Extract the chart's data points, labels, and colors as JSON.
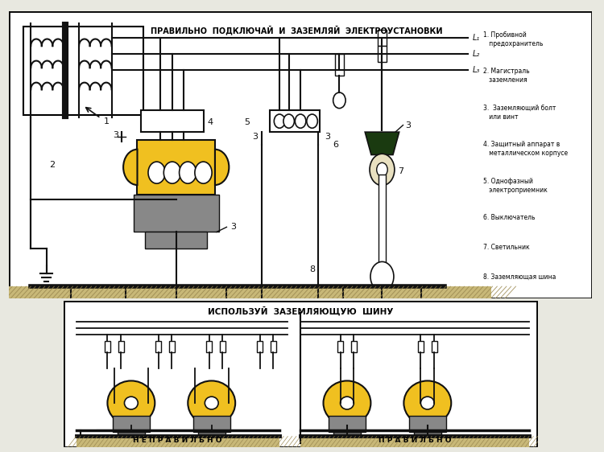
{
  "title_top": "ПРАВИЛЬНО  ПОДКЛЮЧАЙ  И  ЗАЗЕМЛЯЙ  ЭЛЕКТРОУСТАНОВКИ",
  "title_bottom": "ИСПОЛЬЗУЙ  ЗАЗЕМЛЯЮЩУЮ  ШИНУ",
  "label_nepravilno": "Н Е П Р А В И Л Ь Н О",
  "label_pravilno": "П Р А В И Л Ь Н О",
  "legend_items": [
    "1. Пробивной\n   предохранитель",
    "2. Магистраль\n   заземления",
    "3.  Заземляющий болт\n   или винт",
    "4. Защитный аппарат в\n   металлическом корпусе",
    "5. Однофазный\n   электроприемник",
    "6. Выключатель",
    "7. Светильник",
    "8. Заземляющая шина"
  ],
  "L_labels": [
    "L₁",
    "L₂",
    "L₃"
  ],
  "bg_color": "#e8e8e0",
  "panel_bg": "#ffffff",
  "line_color": "#111111",
  "yellow_color": "#f0c020",
  "gray_color": "#888888",
  "dark_green": "#1a3a10",
  "ground_fill": "#c8b878",
  "hatch_color": "#9a8850"
}
